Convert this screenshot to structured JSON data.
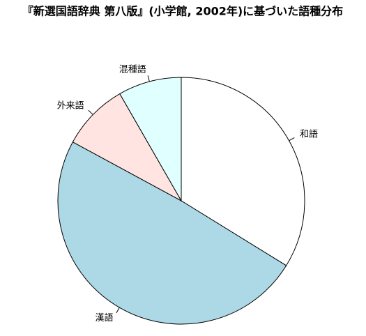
{
  "chart_data": {
    "type": "pie",
    "title": "『新選国語辞典 第八版』(小学館, 2002年)に基づいた語種分布",
    "categories": [
      "和語",
      "漢語",
      "外来語",
      "混種語"
    ],
    "values": [
      33.8,
      49.1,
      8.8,
      8.3
    ],
    "colors": [
      "#ffffff",
      "#add8e6",
      "#ffe4e1",
      "#e0ffff"
    ],
    "clockwise": true
  }
}
